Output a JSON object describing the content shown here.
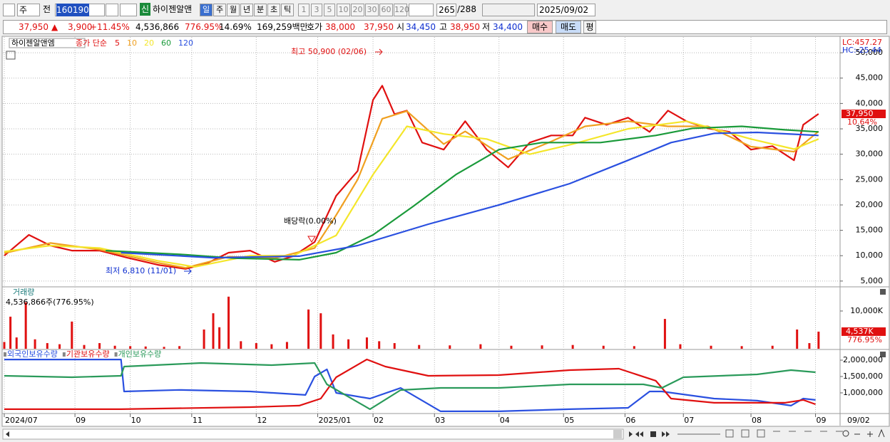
{
  "toolbar": {
    "period": "주",
    "prefix": "전",
    "code": "160190",
    "badge": "신",
    "name": "하이젠알앤",
    "units": [
      "일",
      "주",
      "월",
      "년",
      "분",
      "초",
      "틱"
    ],
    "steps": [
      "1",
      "3",
      "5",
      "10",
      "20",
      "30",
      "60",
      "120"
    ],
    "count": "265",
    "total": "/288",
    "date": "2025/09/02"
  },
  "quote": {
    "price": "37,950",
    "arrow": "▲",
    "change": "3,900",
    "rate": "+11.45%",
    "volume": "4,536,866",
    "volume_rate": "776.95%",
    "turnover": "14.69%",
    "amount": "169,259백만",
    "bid_label": "호가",
    "ask": "38,000",
    "bid": "37,950",
    "open_label": "시",
    "open": "34,450",
    "high_label": "고",
    "high": "38,950",
    "low_label": "저",
    "low": "34,400",
    "buy": "매수",
    "sell": "매도",
    "avg": "평"
  },
  "chart_data": [
    {
      "type": "line",
      "title": "하이젠알앤엠",
      "subtitle": "종가 단순",
      "xlim": [
        0,
        272
      ],
      "ylim": [
        4000,
        53100
      ],
      "grid": true,
      "yticks": [
        {
          "value": 5000,
          "label": "5,000"
        },
        {
          "value": 10000,
          "label": "10,000"
        },
        {
          "value": 15000,
          "label": "15,000"
        },
        {
          "value": 20000,
          "label": "20,000"
        },
        {
          "value": 25000,
          "label": "25,000"
        },
        {
          "value": 30000,
          "label": "30,000"
        },
        {
          "value": 35000,
          "label": "35,000"
        },
        {
          "value": 40000,
          "label": "40,000"
        },
        {
          "value": 45000,
          "label": "45,000"
        },
        {
          "value": 50000,
          "label": "50,000"
        }
      ],
      "series": [
        {
          "name": "5",
          "color": "#e01010",
          "x": [
            0,
            8,
            15,
            22,
            31,
            40,
            50,
            59,
            66,
            73,
            80,
            88,
            94,
            101,
            108,
            115,
            120,
            123,
            127,
            131,
            136,
            143,
            150,
            157,
            164,
            171,
            178,
            185,
            189,
            196,
            203,
            210,
            216,
            222,
            229,
            236,
            243,
            250,
            257,
            260,
            265
          ],
          "values": [
            10000,
            14100,
            12000,
            11000,
            11000,
            9600,
            8200,
            7400,
            8500,
            10600,
            11000,
            8800,
            9900,
            12700,
            21800,
            26700,
            40700,
            43500,
            37900,
            38600,
            32300,
            30900,
            36500,
            30900,
            27400,
            32300,
            33700,
            33700,
            37200,
            35800,
            37200,
            34400,
            38600,
            36500,
            35100,
            34400,
            30900,
            31600,
            28800,
            35800,
            37950
          ]
        },
        {
          "name": "10",
          "color": "#f0a020",
          "x": [
            0,
            15,
            31,
            50,
            59,
            73,
            88,
            101,
            108,
            115,
            123,
            131,
            143,
            150,
            164,
            178,
            189,
            203,
            216,
            229,
            243,
            257,
            265
          ],
          "values": [
            10500,
            12500,
            11200,
            8600,
            7600,
            9800,
            9500,
            11500,
            18000,
            25000,
            37000,
            38500,
            32000,
            34500,
            29000,
            32500,
            35500,
            36500,
            35500,
            35500,
            31500,
            30500,
            34500
          ]
        },
        {
          "name": "20",
          "color": "#f4e62a",
          "x": [
            0,
            15,
            31,
            50,
            62,
            80,
            94,
            108,
            120,
            131,
            143,
            157,
            171,
            185,
            203,
            222,
            243,
            257,
            265
          ],
          "values": [
            10800,
            12000,
            11500,
            9000,
            7800,
            10000,
            10000,
            14000,
            26000,
            35500,
            34000,
            33000,
            30000,
            32000,
            35000,
            36500,
            33000,
            31000,
            33000
          ]
        },
        {
          "name": "60",
          "color": "#1a9a3a",
          "x": [
            33,
            59,
            75,
            96,
            108,
            120,
            133,
            147,
            161,
            175,
            194,
            212,
            224,
            240,
            254,
            265
          ],
          "values": [
            11000,
            10200,
            9500,
            9200,
            10600,
            14100,
            19700,
            26000,
            30900,
            32300,
            32300,
            33700,
            35100,
            35500,
            34800,
            34400
          ]
        },
        {
          "name": "120",
          "color": "#2a50e0",
          "x": [
            38,
            68,
            96,
            115,
            138,
            161,
            184,
            203,
            217,
            231,
            245,
            265
          ],
          "values": [
            10600,
            9600,
            9900,
            12000,
            16200,
            20000,
            24200,
            28800,
            32300,
            34100,
            34300,
            33700
          ]
        }
      ],
      "annotations": [
        "최고 50,900 (02/06)",
        "최저 6,810 (11/01)",
        "배당락(0.00%)"
      ],
      "axis_notes": [
        "LC:457.27",
        "HC:-25.44"
      ],
      "last_value_label": "37,950",
      "last_change_label": "10.64%"
    },
    {
      "type": "bar",
      "title": "거래량",
      "subtitle": "4,536,866주(776.95%)",
      "xlim": [
        0,
        272
      ],
      "ylim": [
        0,
        16400
      ],
      "color": "#e01010",
      "yticks": [
        {
          "value": 10000,
          "label": "10,000K"
        }
      ],
      "x": [
        0,
        2,
        4,
        7,
        10,
        14,
        18,
        22,
        26,
        31,
        36,
        41,
        46,
        52,
        57,
        65,
        68,
        70,
        73,
        77,
        82,
        87,
        92,
        99,
        103,
        107,
        112,
        118,
        122,
        127,
        135,
        145,
        155,
        165,
        175,
        185,
        195,
        205,
        215,
        220,
        230,
        240,
        250,
        258,
        262,
        265
      ],
      "values": [
        1800,
        8500,
        3000,
        12300,
        2500,
        1500,
        1200,
        7200,
        1000,
        1500,
        800,
        700,
        600,
        500,
        700,
        5100,
        9400,
        5700,
        13800,
        2000,
        1500,
        1200,
        1800,
        10400,
        9400,
        3800,
        2500,
        3000,
        2000,
        1500,
        1000,
        900,
        1200,
        800,
        900,
        1000,
        800,
        700,
        7900,
        1200,
        800,
        700,
        800,
        5100,
        1500,
        4537
      ],
      "last_value_label": "4,537K",
      "last_change_label": "776.95%"
    },
    {
      "type": "line",
      "xlim": [
        0,
        272
      ],
      "ylim": [
        390000,
        2326000
      ],
      "yticks": [
        {
          "value": 1000000,
          "label": "1,000,000"
        },
        {
          "value": 1500000,
          "label": "1,500,000"
        },
        {
          "value": 2000000,
          "label": "2,000,000"
        }
      ],
      "series": [
        {
          "name": "외국인보유수량",
          "color": "#2a50e0",
          "x": [
            0,
            38,
            39,
            57,
            80,
            98,
            101,
            105,
            108,
            119,
            129,
            142,
            161,
            184,
            203,
            210,
            214,
            231,
            245,
            256,
            260,
            264
          ],
          "values": [
            2020000,
            2020000,
            1043000,
            1090000,
            1043000,
            935000,
            1500000,
            1720000,
            1000000,
            826000,
            1150000,
            435000,
            435000,
            500000,
            543000,
            1043000,
            1043000,
            826000,
            761000,
            609000,
            826000,
            783000
          ]
        },
        {
          "name": "기관보유수량",
          "color": "#e01010",
          "x": [
            0,
            38,
            80,
            96,
            103,
            108,
            118,
            124,
            138,
            161,
            184,
            200,
            212,
            217,
            231,
            254,
            260,
            264
          ],
          "values": [
            500000,
            500000,
            565000,
            609000,
            826000,
            1478000,
            2022000,
            1804000,
            1522000,
            1543000,
            1696000,
            1739000,
            1370000,
            826000,
            696000,
            696000,
            783000,
            652000
          ]
        },
        {
          "name": "개인보유수량",
          "color": "#2a9a5a",
          "x": [
            0,
            22,
            38,
            39,
            64,
            87,
            101,
            105,
            119,
            129,
            142,
            161,
            184,
            208,
            214,
            221,
            245,
            256,
            264
          ],
          "values": [
            1522000,
            1478000,
            1522000,
            1804000,
            1913000,
            1848000,
            1913000,
            1261000,
            500000,
            1087000,
            1152000,
            1152000,
            1261000,
            1261000,
            1152000,
            1478000,
            1565000,
            1696000,
            1630000
          ]
        }
      ],
      "xticks": [
        {
          "value": 0,
          "label": "2024/07"
        },
        {
          "value": 23,
          "label": "09"
        },
        {
          "value": 41,
          "label": "10"
        },
        {
          "value": 61,
          "label": "11"
        },
        {
          "value": 82,
          "label": "12"
        },
        {
          "value": 102,
          "label": "2025/01"
        },
        {
          "value": 120,
          "label": "02"
        },
        {
          "value": 140,
          "label": "03"
        },
        {
          "value": 161,
          "label": "04"
        },
        {
          "value": 182,
          "label": "05"
        },
        {
          "value": 202,
          "label": "06"
        },
        {
          "value": 221,
          "label": "07"
        },
        {
          "value": 243,
          "label": "08"
        },
        {
          "value": 264,
          "label": "09"
        }
      ],
      "x_end_label": "09/02"
    }
  ]
}
